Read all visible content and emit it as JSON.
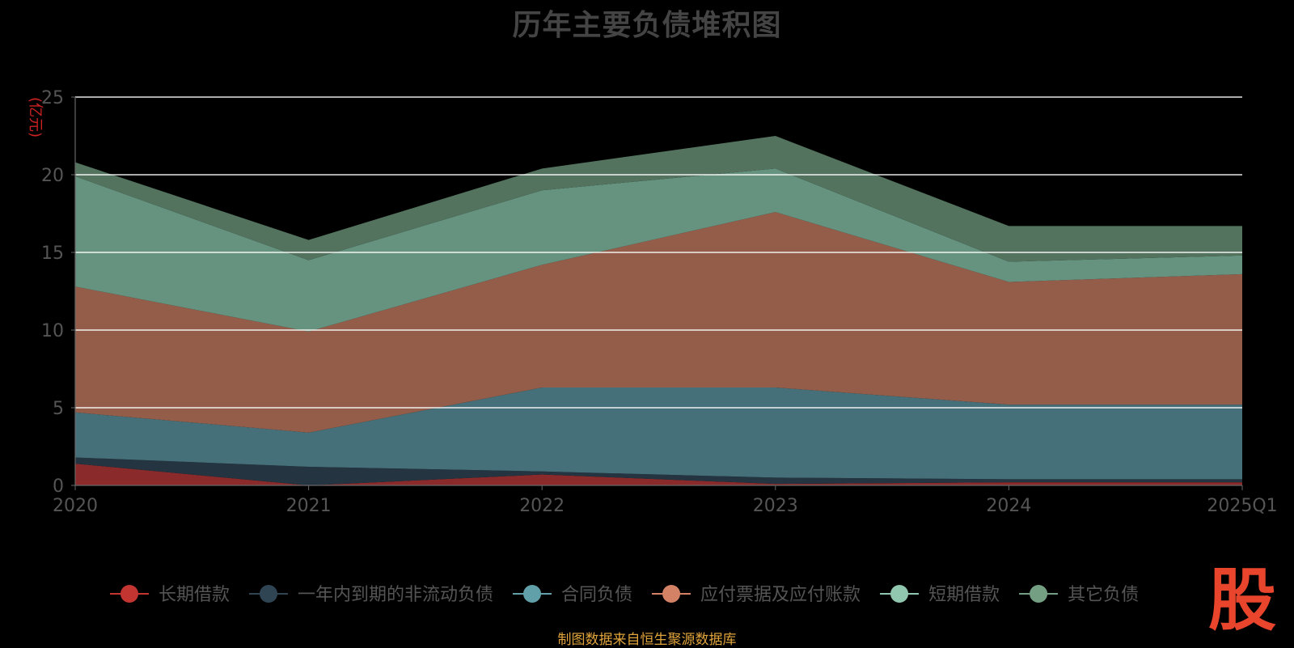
{
  "title": "历年主要负债堆积图",
  "source_note": "制图数据来自恒生聚源数据库",
  "logo_text": "股",
  "chart_data": {
    "type": "area",
    "stacked": true,
    "title": "历年主要负债堆积图",
    "ylabel": "(亿元)",
    "categories": [
      "2020",
      "2021",
      "2022",
      "2023",
      "2024",
      "2025Q1"
    ],
    "ylim": [
      0,
      25
    ],
    "yticks": [
      0,
      5,
      10,
      15,
      20,
      25
    ],
    "grid": true,
    "legend_position": "bottom",
    "series": [
      {
        "name": "长期借款",
        "color": "#c23531",
        "fill": "#8b2a2a",
        "values": [
          1.4,
          0.0,
          0.7,
          0.1,
          0.2,
          0.2
        ]
      },
      {
        "name": "一年内到期的非流动负债",
        "color": "#2f4554",
        "fill": "#243441",
        "values": [
          0.4,
          1.2,
          0.2,
          0.4,
          0.2,
          0.2
        ]
      },
      {
        "name": "合同负债",
        "color": "#61a0a8",
        "fill": "#457079",
        "values": [
          2.9,
          2.2,
          5.4,
          5.8,
          4.8,
          4.8
        ]
      },
      {
        "name": "应付票据及应付账款",
        "color": "#d48265",
        "fill": "#945d4a",
        "values": [
          8.1,
          6.5,
          7.9,
          11.3,
          7.9,
          8.4
        ]
      },
      {
        "name": "短期借款",
        "color": "#91c7ae",
        "fill": "#669380",
        "values": [
          7.1,
          4.6,
          4.8,
          2.8,
          1.3,
          1.2
        ]
      },
      {
        "name": "其它负债",
        "color": "#749f83",
        "fill": "#53735e",
        "values": [
          0.9,
          1.3,
          1.4,
          2.1,
          2.3,
          1.9
        ]
      }
    ]
  }
}
